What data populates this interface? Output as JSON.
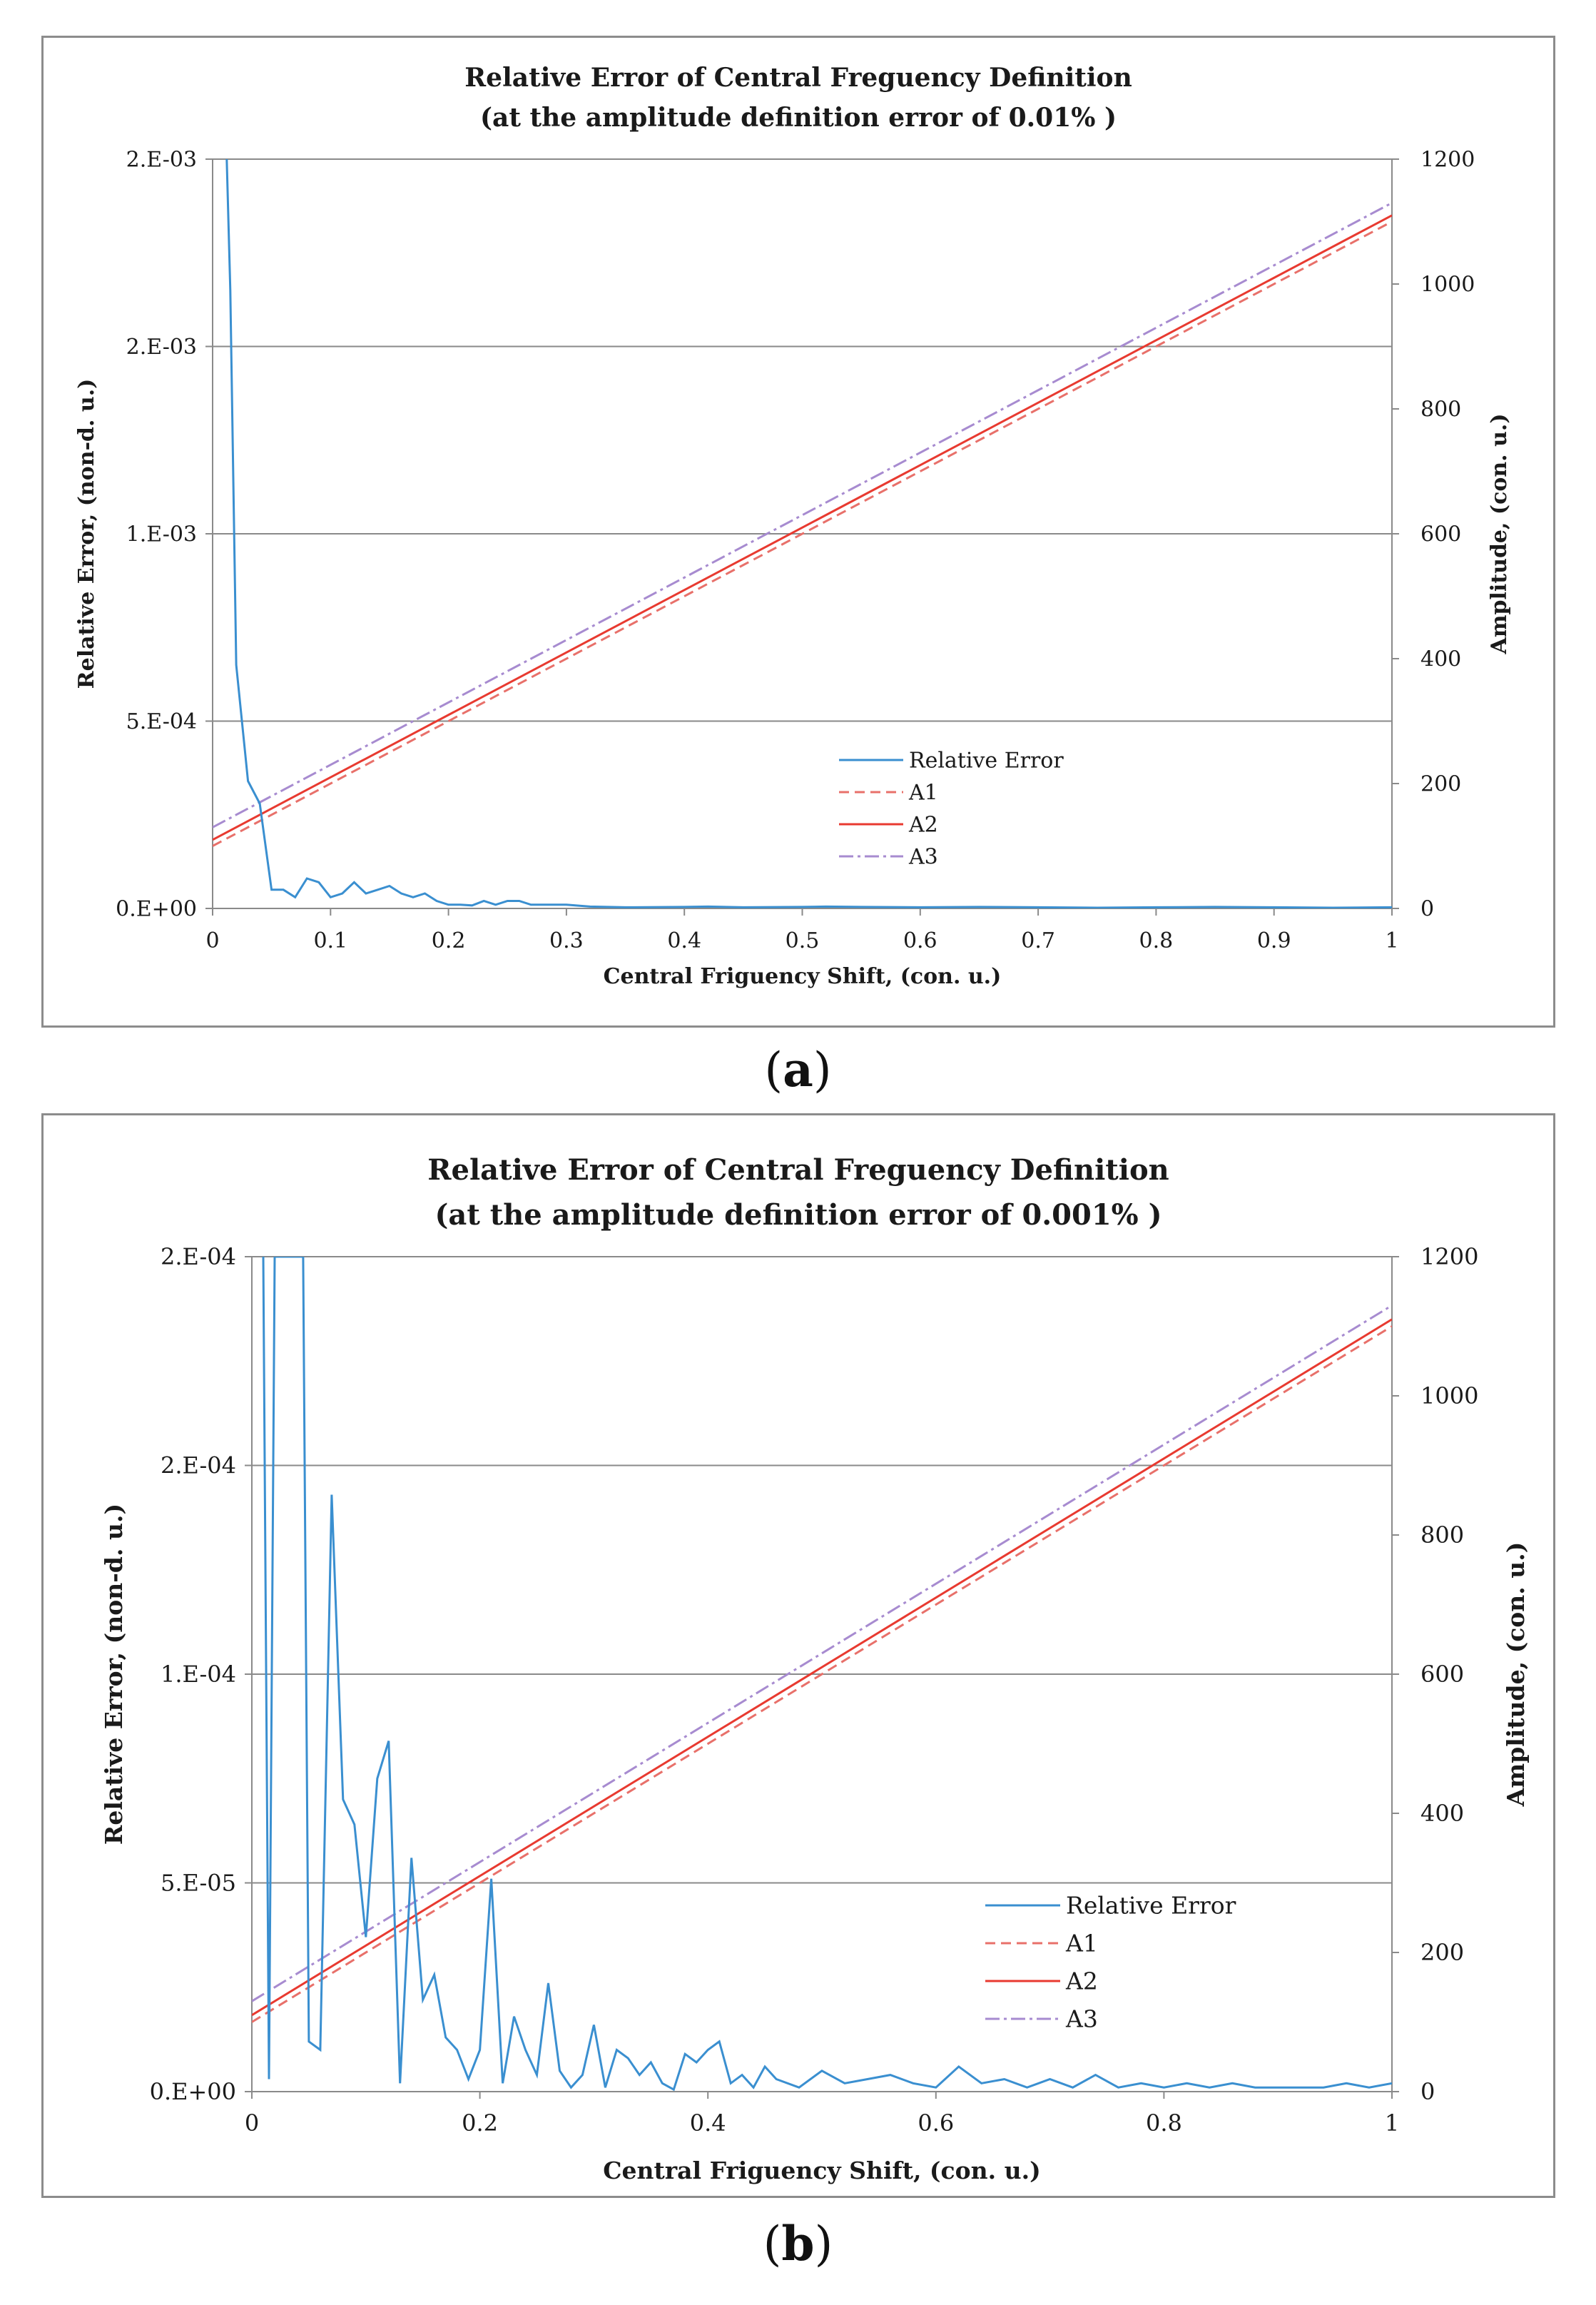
{
  "chart_data": [
    {
      "id": "a",
      "type": "line",
      "title": [
        "Relative Error  of Central Freguency Definition",
        "(at the amplitude definition error of 0.01% )"
      ],
      "xlabel": "Central Friguency Shift, (con. u.)",
      "ylabel_left": "Relative Error, (non-d. u.)",
      "ylabel_right": "Amplitude, (con. u.)",
      "xlim": [
        0,
        1
      ],
      "xticks": [
        0,
        0.1,
        0.2,
        0.3,
        0.4,
        0.5,
        0.6,
        0.7,
        0.8,
        0.9,
        1
      ],
      "xtick_labels": [
        "0",
        "0.1",
        "0.2",
        "0.3",
        "0.4",
        "0.5",
        "0.6",
        "0.7",
        "0.8",
        "0.9",
        "1"
      ],
      "ylim_left": [
        0,
        0.002
      ],
      "yticks_left": [
        0,
        0.0005,
        0.001,
        0.0015,
        0.002
      ],
      "ytick_labels_left": [
        "0.E+00",
        "5.E-04",
        "1.E-03",
        "2.E-03",
        "2.E-03"
      ],
      "ylim_right": [
        0,
        1200
      ],
      "yticks_right": [
        0,
        200,
        400,
        600,
        800,
        1000,
        1200
      ],
      "ytick_labels_right": [
        "0",
        "200",
        "400",
        "600",
        "800",
        "1000",
        "1200"
      ],
      "grid": "horizontal",
      "legend_position": "center-right",
      "series": [
        {
          "name": "Relative Error",
          "axis": "left",
          "color": "#3a8fd0",
          "style": "solid",
          "x": [
            0.012,
            0.015,
            0.02,
            0.03,
            0.04,
            0.05,
            0.06,
            0.07,
            0.08,
            0.09,
            0.1,
            0.11,
            0.12,
            0.13,
            0.14,
            0.15,
            0.16,
            0.17,
            0.18,
            0.19,
            0.2,
            0.21,
            0.22,
            0.23,
            0.24,
            0.25,
            0.26,
            0.27,
            0.28,
            0.3,
            0.32,
            0.35,
            0.4,
            0.42,
            0.45,
            0.5,
            0.52,
            0.55,
            0.6,
            0.65,
            0.7,
            0.75,
            0.8,
            0.85,
            0.9,
            0.95,
            1
          ],
          "y": [
            0.002,
            0.00165,
            0.00065,
            0.00034,
            0.00028,
            5e-05,
            5e-05,
            3e-05,
            8e-05,
            7e-05,
            3e-05,
            4e-05,
            7e-05,
            4e-05,
            5e-05,
            6e-05,
            4e-05,
            3e-05,
            4e-05,
            2e-05,
            1e-05,
            1e-05,
            8e-06,
            2e-05,
            1e-05,
            2e-05,
            2e-05,
            1e-05,
            1e-05,
            1e-05,
            5e-06,
            3e-06,
            4e-06,
            5e-06,
            3e-06,
            4e-06,
            5e-06,
            4e-06,
            3e-06,
            4e-06,
            3e-06,
            2e-06,
            3e-06,
            4e-06,
            3e-06,
            2e-06,
            3e-06
          ]
        },
        {
          "name": "A1",
          "axis": "right",
          "color": "#e8706a",
          "style": "dashed",
          "x": [
            0,
            1
          ],
          "y": [
            100,
            1100
          ]
        },
        {
          "name": "A2",
          "axis": "right",
          "color": "#e83a30",
          "style": "solid",
          "x": [
            0,
            1
          ],
          "y": [
            110,
            1110
          ]
        },
        {
          "name": "A3",
          "axis": "right",
          "color": "#a78bd0",
          "style": "dashdot",
          "x": [
            0,
            1
          ],
          "y": [
            130,
            1130
          ]
        }
      ]
    },
    {
      "id": "b",
      "type": "line",
      "title": [
        "Relative Error  of Central Freguency Definition",
        "(at the amplitude definition error of 0.001% )"
      ],
      "xlabel": "Central Friguency Shift, (con. u.)",
      "ylabel_left": "Relative Error, (non-d. u.)",
      "ylabel_right": "Amplitude, (con. u.)",
      "xlim": [
        0,
        1
      ],
      "xticks": [
        0,
        0.2,
        0.4,
        0.6,
        0.8,
        1
      ],
      "xtick_labels": [
        "0",
        "0.2",
        "0.4",
        "0.6",
        "0.8",
        "1"
      ],
      "ylim_left": [
        0,
        0.0002
      ],
      "yticks_left": [
        0,
        5e-05,
        0.0001,
        0.00015,
        0.0002
      ],
      "ytick_labels_left": [
        "0.E+00",
        "5.E-05",
        "1.E-04",
        "2.E-04",
        "2.E-04"
      ],
      "ylim_right": [
        0,
        1200
      ],
      "yticks_right": [
        0,
        200,
        400,
        600,
        800,
        1000,
        1200
      ],
      "ytick_labels_right": [
        "0",
        "200",
        "400",
        "600",
        "800",
        "1000",
        "1200"
      ],
      "grid": "horizontal",
      "legend_position": "center-right",
      "series": [
        {
          "name": "Relative Error",
          "axis": "left",
          "color": "#3a8fd0",
          "style": "solid",
          "x": [
            0.01,
            0.015,
            0.02,
            0.025,
            0.03,
            0.04,
            0.045,
            0.05,
            0.06,
            0.07,
            0.08,
            0.09,
            0.1,
            0.11,
            0.12,
            0.13,
            0.14,
            0.15,
            0.16,
            0.17,
            0.18,
            0.19,
            0.2,
            0.21,
            0.22,
            0.23,
            0.24,
            0.25,
            0.26,
            0.27,
            0.28,
            0.29,
            0.3,
            0.31,
            0.32,
            0.33,
            0.34,
            0.35,
            0.36,
            0.37,
            0.38,
            0.39,
            0.4,
            0.41,
            0.42,
            0.43,
            0.44,
            0.45,
            0.46,
            0.48,
            0.5,
            0.52,
            0.54,
            0.56,
            0.58,
            0.6,
            0.62,
            0.64,
            0.66,
            0.68,
            0.7,
            0.72,
            0.74,
            0.76,
            0.78,
            0.8,
            0.82,
            0.84,
            0.86,
            0.88,
            0.9,
            0.92,
            0.94,
            0.96,
            0.98,
            1
          ],
          "y": [
            0.0002,
            3e-06,
            0.0002,
            0.0002,
            0.0002,
            0.0002,
            0.0002,
            1.2e-05,
            1e-05,
            0.000143,
            7e-05,
            6.4e-05,
            3.7e-05,
            7.5e-05,
            8.4e-05,
            2e-06,
            5.6e-05,
            2.2e-05,
            2.8e-05,
            1.3e-05,
            1e-05,
            3e-06,
            1e-05,
            5.1e-05,
            2e-06,
            1.8e-05,
            1e-05,
            4e-06,
            2.6e-05,
            5e-06,
            1e-06,
            4e-06,
            1.6e-05,
            1e-06,
            1e-05,
            8e-06,
            4e-06,
            7e-06,
            2e-06,
            5e-07,
            9e-06,
            7e-06,
            1e-05,
            1.2e-05,
            2e-06,
            4e-06,
            1e-06,
            6e-06,
            3e-06,
            1e-06,
            5e-06,
            2e-06,
            3e-06,
            4e-06,
            2e-06,
            1e-06,
            6e-06,
            2e-06,
            3e-06,
            1e-06,
            3e-06,
            1e-06,
            4e-06,
            1e-06,
            2e-06,
            1e-06,
            2e-06,
            1e-06,
            2e-06,
            1e-06,
            1e-06,
            1e-06,
            1e-06,
            2e-06,
            1e-06,
            2e-06
          ]
        },
        {
          "name": "A1",
          "axis": "right",
          "color": "#e8706a",
          "style": "dashed",
          "x": [
            0,
            1
          ],
          "y": [
            100,
            1100
          ]
        },
        {
          "name": "A2",
          "axis": "right",
          "color": "#e83a30",
          "style": "solid",
          "x": [
            0,
            1
          ],
          "y": [
            110,
            1110
          ]
        },
        {
          "name": "A3",
          "axis": "right",
          "color": "#a78bd0",
          "style": "dashdot",
          "x": [
            0,
            1
          ],
          "y": [
            130,
            1130
          ]
        }
      ]
    }
  ],
  "captions": {
    "a_open": "(",
    "a_letter": "a",
    "a_close": ")",
    "b_open": "(",
    "b_letter": "b",
    "b_close": ")"
  }
}
